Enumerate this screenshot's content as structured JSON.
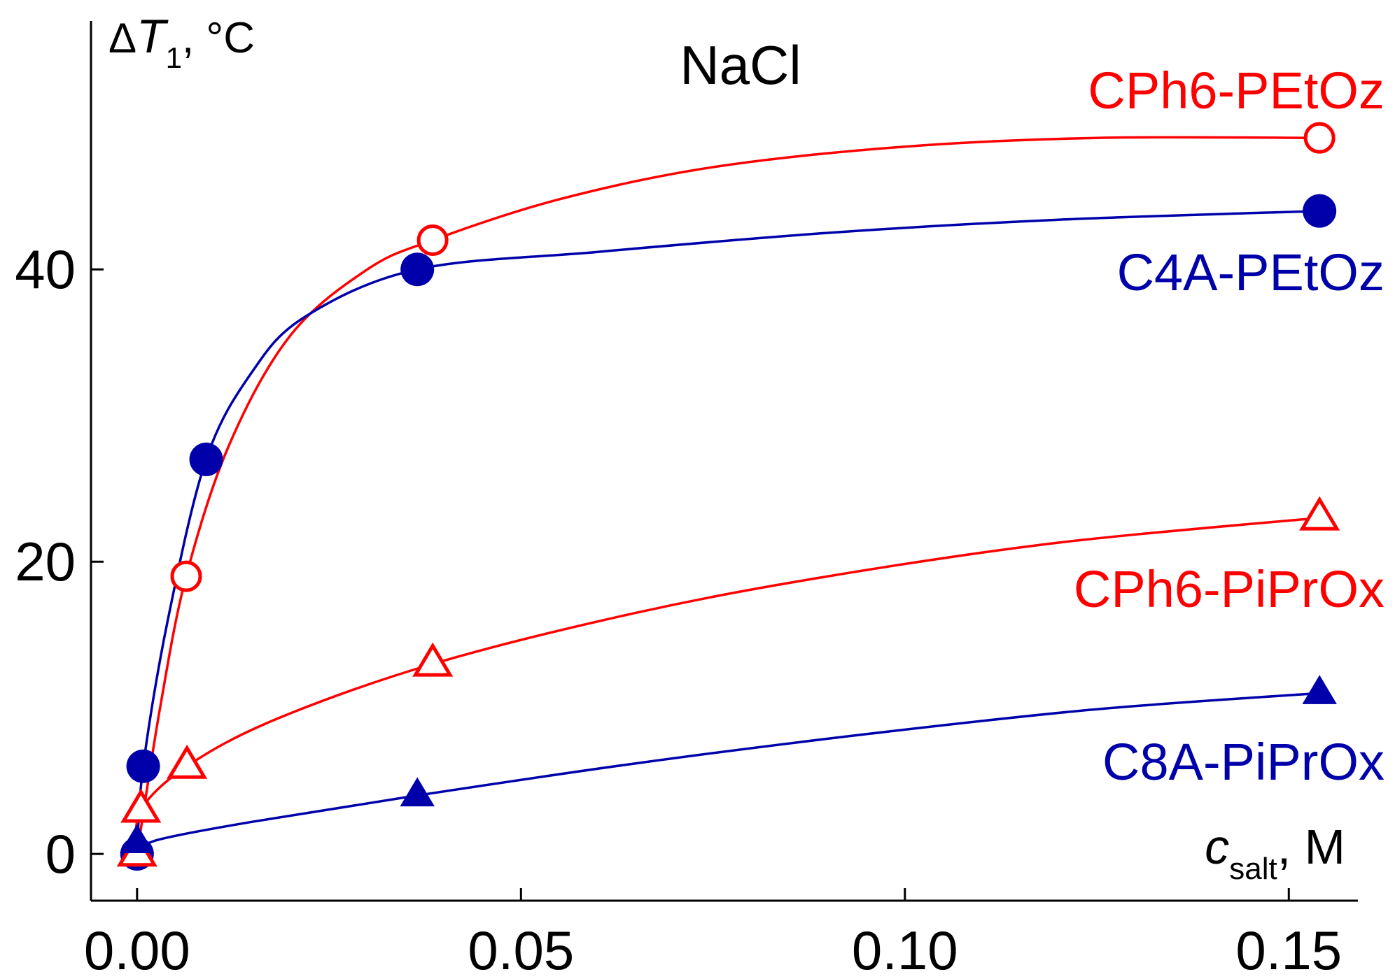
{
  "chart_data": {
    "type": "scatter",
    "title": "NaCl",
    "xlabel": {
      "main": "c",
      "sub": "salt",
      "suffix": ", M"
    },
    "ylabel": {
      "prefix": "Δ",
      "main": "T",
      "sub": "1",
      "suffix": ", °C"
    },
    "xlim": [
      -0.006,
      0.159
    ],
    "ylim": [
      -3.2,
      57
    ],
    "xticks": [
      {
        "value": 0.0,
        "label": "0.00"
      },
      {
        "value": 0.05,
        "label": "0.05"
      },
      {
        "value": 0.1,
        "label": "0.10"
      },
      {
        "value": 0.15,
        "label": "0.15"
      }
    ],
    "yticks": [
      {
        "value": 0,
        "label": "0"
      },
      {
        "value": 20,
        "label": "20"
      },
      {
        "value": 40,
        "label": "40"
      }
    ],
    "grid": false,
    "series": [
      {
        "name": "CPh6-PEtOz",
        "color": "#ff0000",
        "marker": "circle",
        "filled": false,
        "x": [
          0.0,
          0.0064,
          0.0385,
          0.154
        ],
        "y": [
          0,
          19,
          42,
          49
        ],
        "curve": [
          [
            0.0,
            0.0
          ],
          [
            0.003,
            10
          ],
          [
            0.0064,
            19
          ],
          [
            0.012,
            28
          ],
          [
            0.02,
            35.5
          ],
          [
            0.03,
            40
          ],
          [
            0.0385,
            42
          ],
          [
            0.055,
            44.8
          ],
          [
            0.075,
            47
          ],
          [
            0.1,
            48.4
          ],
          [
            0.125,
            49
          ],
          [
            0.154,
            49
          ]
        ]
      },
      {
        "name": "C4A-PEtOz",
        "color": "#0000aa",
        "marker": "circle",
        "filled": true,
        "x": [
          0.0,
          0.0008,
          0.009,
          0.0365,
          0.154
        ],
        "y": [
          0,
          6,
          27,
          40,
          44
        ],
        "curve": [
          [
            0.0,
            0.0
          ],
          [
            0.0008,
            6
          ],
          [
            0.004,
            16
          ],
          [
            0.009,
            27
          ],
          [
            0.015,
            33
          ],
          [
            0.022,
            36.8
          ],
          [
            0.0365,
            40
          ],
          [
            0.06,
            41.2
          ],
          [
            0.09,
            42.5
          ],
          [
            0.12,
            43.4
          ],
          [
            0.154,
            44
          ]
        ]
      },
      {
        "name": "CPh6-PiPrOx",
        "color": "#ff0000",
        "marker": "triangle",
        "filled": false,
        "x": [
          0.0,
          0.0005,
          0.0065,
          0.0385,
          0.154
        ],
        "y": [
          0,
          3,
          6,
          13,
          23
        ],
        "curve": [
          [
            0.0,
            0.0
          ],
          [
            0.0005,
            3
          ],
          [
            0.0065,
            6
          ],
          [
            0.018,
            9.2
          ],
          [
            0.0385,
            13
          ],
          [
            0.065,
            16.5
          ],
          [
            0.09,
            19
          ],
          [
            0.12,
            21.3
          ],
          [
            0.154,
            23
          ]
        ]
      },
      {
        "name": "C8A-PiPrOx",
        "color": "#0000aa",
        "marker": "triangle",
        "filled": true,
        "x": [
          0.0,
          0.0365,
          0.154
        ],
        "y": [
          0.8,
          4,
          11
        ],
        "curve": [
          [
            0.0,
            0.2
          ],
          [
            0.003,
            1
          ],
          [
            0.015,
            2.2
          ],
          [
            0.0365,
            4
          ],
          [
            0.065,
            6.2
          ],
          [
            0.095,
            8.2
          ],
          [
            0.125,
            9.9
          ],
          [
            0.154,
            11
          ]
        ]
      }
    ]
  }
}
